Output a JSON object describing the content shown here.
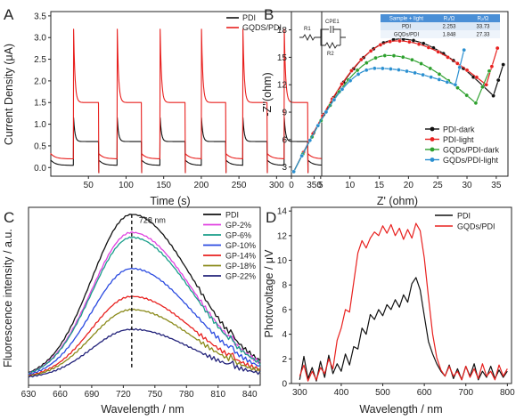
{
  "chart_data": [
    {
      "panel": "A",
      "type": "line",
      "xlabel": "Time (s)",
      "ylabel": "Current Density (μA)",
      "xlim": [
        0,
        360
      ],
      "ylim": [
        -0.2,
        3.6
      ],
      "xticks": [
        50,
        100,
        150,
        200,
        250,
        300,
        350
      ],
      "yticks": [
        0.0,
        0.5,
        1.0,
        1.5,
        2.0,
        2.5,
        3.0,
        3.5
      ],
      "legend_position": "top-right",
      "on_times": [
        30,
        88,
        145,
        200,
        255,
        310
      ],
      "off_times": [
        63,
        120,
        178,
        232,
        287,
        341
      ],
      "series": [
        {
          "name": "PDI",
          "color": "#111111",
          "spike": 1.25,
          "plateau": 0.6,
          "dark": 0.05
        },
        {
          "name": "GQDS/PDI",
          "color": "#e8201e",
          "spike": 3.5,
          "plateau": 1.5,
          "dark": 0.2
        }
      ]
    },
    {
      "panel": "B",
      "type": "scatter",
      "xlabel": "Z' (ohm)",
      "ylabel": "-Z''(ohm)",
      "xlim": [
        0,
        37
      ],
      "ylim": [
        2,
        20
      ],
      "xticks": [
        0,
        5,
        10,
        15,
        20,
        25,
        30,
        35
      ],
      "yticks": [
        3,
        6,
        9,
        12,
        15,
        18
      ],
      "legend_position": "bottom-right",
      "circuit_labels": {
        "r1": "R1",
        "cpe": "CPE1",
        "r2": "R2"
      },
      "table": {
        "headers": [
          "Sample + light",
          "R₁/Ω",
          "R₂/Ω"
        ],
        "rows": [
          [
            "PDI",
            "2.253",
            "33.73"
          ],
          [
            "GQDs/PDI",
            "1.848",
            "27.33"
          ]
        ]
      },
      "series": [
        {
          "name": "PDI-dark",
          "color": "#111111",
          "x0": 0.4,
          "peak_x": 18.5,
          "peak_y": 17.0,
          "min_x": 34.5,
          "min_y": 10.8,
          "end_x": 36.2,
          "end_y": 14.2
        },
        {
          "name": "PDI-light",
          "color": "#e8201e",
          "x0": 0.4,
          "peak_x": 18.0,
          "peak_y": 16.8,
          "min_x": 33.3,
          "min_y": 12.0,
          "end_x": 35.2,
          "end_y": 16.0
        },
        {
          "name": "GQDs/PDI-dark",
          "color": "#2ea02e",
          "x0": 0.4,
          "peak_x": 16.5,
          "peak_y": 15.2,
          "min_x": 31.5,
          "min_y": 10.0,
          "end_x": 33.8,
          "end_y": 13.5
        },
        {
          "name": "GQDs/PDI-light",
          "color": "#2a8fd0",
          "x0": 0.4,
          "peak_x": 14.5,
          "peak_y": 13.8,
          "min_x": 28.0,
          "min_y": 12.0,
          "end_x": 29.5,
          "end_y": 15.8
        }
      ]
    },
    {
      "panel": "C",
      "type": "line",
      "xlabel": "Wavelength / nm",
      "ylabel": "Fluorescence intensity / a.u.",
      "xlim": [
        630,
        850
      ],
      "xticks": [
        630,
        660,
        690,
        720,
        750,
        780,
        810,
        840
      ],
      "annotation": {
        "text": "728 nm",
        "x": 728
      },
      "legend_position": "top-right",
      "series": [
        {
          "name": "PDI",
          "color": "#111111",
          "peak": 1.0
        },
        {
          "name": "GP-2%",
          "color": "#e040e0",
          "peak": 0.89
        },
        {
          "name": "GP-6%",
          "color": "#1a9e8a",
          "peak": 0.86
        },
        {
          "name": "GP-10%",
          "color": "#2a4ae0",
          "peak": 0.67
        },
        {
          "name": "GP-14%",
          "color": "#e8201e",
          "peak": 0.5
        },
        {
          "name": "GP-18%",
          "color": "#8a8a1a",
          "peak": 0.42
        },
        {
          "name": "GP-22%",
          "color": "#22227a",
          "peak": 0.3
        }
      ]
    },
    {
      "panel": "D",
      "type": "line",
      "xlabel": "Wavelength / nm",
      "ylabel": "Photovoltage / μV",
      "xlim": [
        280,
        810
      ],
      "ylim": [
        0,
        14.3
      ],
      "xticks": [
        300,
        400,
        500,
        600,
        700,
        800
      ],
      "yticks": [
        0,
        2,
        4,
        6,
        8,
        10,
        12,
        14
      ],
      "legend_position": "top-right",
      "series": [
        {
          "name": "PDI",
          "color": "#111111",
          "points": [
            [
              300,
              0.3
            ],
            [
              310,
              2.2
            ],
            [
              320,
              0.4
            ],
            [
              330,
              1.3
            ],
            [
              340,
              0.2
            ],
            [
              350,
              1.8
            ],
            [
              360,
              0.5
            ],
            [
              370,
              2.3
            ],
            [
              380,
              0.8
            ],
            [
              390,
              1.6
            ],
            [
              400,
              1.0
            ],
            [
              410,
              2.4
            ],
            [
              420,
              1.5
            ],
            [
              430,
              3.0
            ],
            [
              440,
              2.8
            ],
            [
              450,
              4.5
            ],
            [
              460,
              4.0
            ],
            [
              470,
              5.6
            ],
            [
              480,
              5.2
            ],
            [
              490,
              6.0
            ],
            [
              500,
              5.5
            ],
            [
              510,
              6.4
            ],
            [
              520,
              6.0
            ],
            [
              530,
              6.8
            ],
            [
              540,
              6.2
            ],
            [
              550,
              7.2
            ],
            [
              560,
              6.6
            ],
            [
              570,
              8.1
            ],
            [
              580,
              8.6
            ],
            [
              590,
              7.6
            ],
            [
              600,
              5.5
            ],
            [
              610,
              3.4
            ],
            [
              620,
              2.4
            ],
            [
              630,
              1.6
            ],
            [
              640,
              1.0
            ],
            [
              650,
              0.6
            ],
            [
              660,
              1.5
            ],
            [
              670,
              0.4
            ],
            [
              680,
              1.2
            ],
            [
              690,
              0.3
            ],
            [
              700,
              1.4
            ],
            [
              710,
              0.6
            ],
            [
              720,
              1.6
            ],
            [
              730,
              0.3
            ],
            [
              740,
              1.0
            ],
            [
              750,
              0.5
            ],
            [
              760,
              1.4
            ],
            [
              770,
              0.4
            ],
            [
              780,
              1.1
            ],
            [
              790,
              0.5
            ],
            [
              800,
              1.0
            ]
          ]
        },
        {
          "name": "GQDs/PDI",
          "color": "#e8201e",
          "points": [
            [
              300,
              0.6
            ],
            [
              310,
              1.5
            ],
            [
              320,
              0.2
            ],
            [
              330,
              1.0
            ],
            [
              340,
              0.3
            ],
            [
              350,
              1.3
            ],
            [
              360,
              0.8
            ],
            [
              370,
              2.0
            ],
            [
              380,
              1.2
            ],
            [
              390,
              3.5
            ],
            [
              400,
              4.5
            ],
            [
              410,
              6.0
            ],
            [
              420,
              5.8
            ],
            [
              430,
              8.2
            ],
            [
              440,
              10.6
            ],
            [
              450,
              11.6
            ],
            [
              460,
              11.0
            ],
            [
              470,
              11.8
            ],
            [
              480,
              12.3
            ],
            [
              490,
              12.0
            ],
            [
              500,
              12.8
            ],
            [
              510,
              12.2
            ],
            [
              520,
              12.9
            ],
            [
              530,
              12.0
            ],
            [
              540,
              12.6
            ],
            [
              550,
              11.7
            ],
            [
              560,
              12.5
            ],
            [
              570,
              11.8
            ],
            [
              580,
              13.0
            ],
            [
              590,
              12.4
            ],
            [
              600,
              10.2
            ],
            [
              610,
              7.0
            ],
            [
              620,
              4.0
            ],
            [
              630,
              2.1
            ],
            [
              640,
              1.1
            ],
            [
              650,
              0.6
            ],
            [
              660,
              1.4
            ],
            [
              670,
              0.6
            ],
            [
              680,
              1.0
            ],
            [
              690,
              0.3
            ],
            [
              700,
              1.4
            ],
            [
              710,
              0.5
            ],
            [
              720,
              1.2
            ],
            [
              730,
              0.4
            ],
            [
              740,
              1.6
            ],
            [
              750,
              0.6
            ],
            [
              760,
              1.0
            ],
            [
              770,
              0.3
            ],
            [
              780,
              1.5
            ],
            [
              790,
              0.6
            ],
            [
              800,
              1.2
            ]
          ]
        }
      ]
    }
  ]
}
